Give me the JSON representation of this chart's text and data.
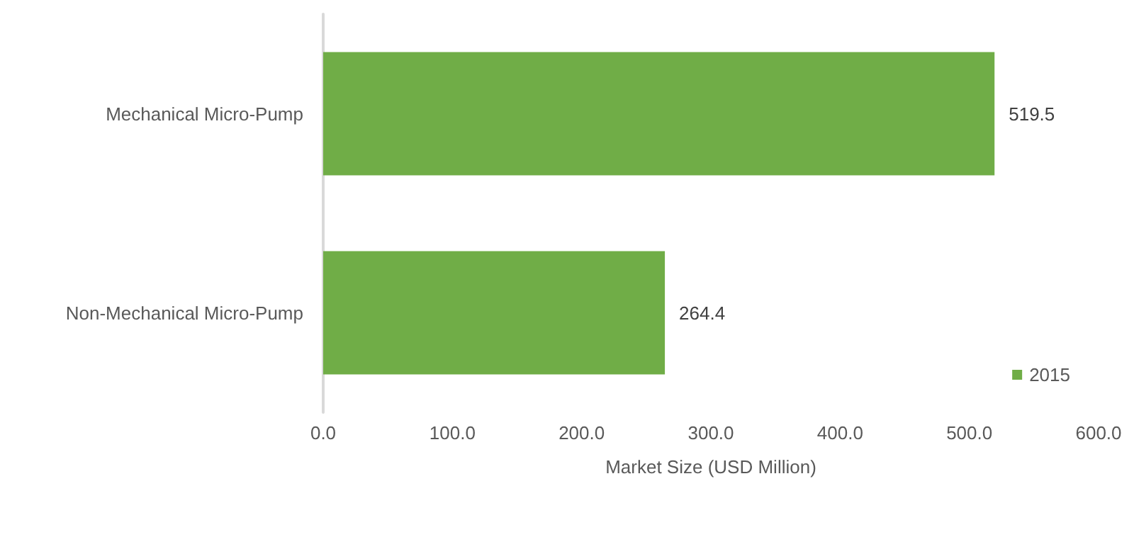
{
  "chart_data": {
    "type": "bar",
    "orientation": "horizontal",
    "categories": [
      "Mechanical Micro-Pump",
      "Non-Mechanical Micro-Pump"
    ],
    "series": [
      {
        "name": "2015",
        "color": "#70ad47",
        "values": [
          519.5,
          264.4
        ]
      }
    ],
    "xlabel": "Market Size (USD Million)",
    "xlim": [
      0,
      600
    ],
    "xticks": [
      {
        "value": 0,
        "label": "0.0"
      },
      {
        "value": 100,
        "label": "100.0"
      },
      {
        "value": 200,
        "label": "200.0"
      },
      {
        "value": 300,
        "label": "300.0"
      },
      {
        "value": 400,
        "label": "400.0"
      },
      {
        "value": 500,
        "label": "500.0"
      },
      {
        "value": 600,
        "label": "600.0"
      }
    ],
    "data_labels": true,
    "grid": false,
    "legend": "bottom right"
  }
}
